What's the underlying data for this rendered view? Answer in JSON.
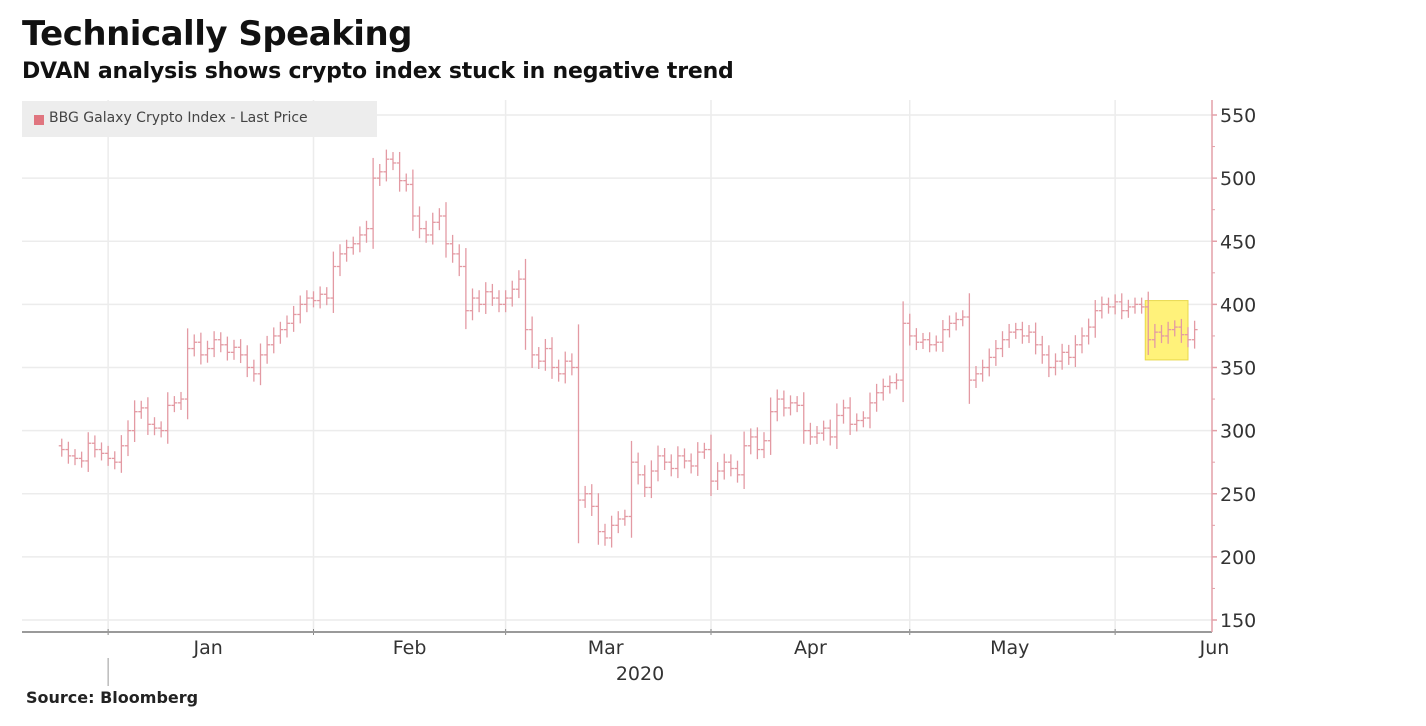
{
  "header": {
    "title": "Technically Speaking",
    "subtitle": "DVAN analysis shows crypto index stuck in negative trend"
  },
  "footer": {
    "source": "Source: Bloomberg"
  },
  "colors": {
    "series": "#e39aa3",
    "legend_swatch": "#e0757f",
    "highlight": "#fff27a",
    "highlight_border": "#e8d84a",
    "grid": "#ececec",
    "axis": "#e3a0a8"
  },
  "chart_data": {
    "type": "ohlc",
    "title": "Technically Speaking",
    "subtitle": "DVAN analysis shows crypto index stuck in negative trend",
    "xlabel": "2020",
    "ylabel": "",
    "ylim": [
      150,
      550
    ],
    "yticks": [
      150,
      200,
      250,
      300,
      350,
      400,
      450,
      500,
      550
    ],
    "y_axis_side": "right",
    "grid": true,
    "legend": {
      "position": "top-left",
      "entries": [
        "BBG Galaxy Crypto Index - Last Price"
      ]
    },
    "x_month_labels": [
      "Jan",
      "Feb",
      "Mar",
      "Apr",
      "May",
      "Jun"
    ],
    "year_label": "2020",
    "start_date": "2019-12-25",
    "x_range": [
      "2019-12-19",
      "2020-06-12"
    ],
    "highlight": {
      "from": "2020-06-06",
      "to": "2020-06-12",
      "low": 356,
      "high": 403,
      "note": "Yellow highlight box on latest prices"
    },
    "series": [
      {
        "name": "BBG Galaxy Crypto Index - Last Price",
        "close": [
          285,
          280,
          278,
          276,
          290,
          285,
          282,
          278,
          275,
          288,
          300,
          315,
          318,
          305,
          302,
          300,
          320,
          322,
          325,
          365,
          370,
          360,
          365,
          372,
          368,
          362,
          366,
          360,
          350,
          345,
          360,
          368,
          375,
          380,
          385,
          392,
          400,
          405,
          403,
          408,
          405,
          430,
          440,
          445,
          448,
          455,
          460,
          500,
          505,
          515,
          512,
          498,
          495,
          470,
          460,
          455,
          465,
          470,
          448,
          440,
          430,
          395,
          405,
          400,
          410,
          405,
          400,
          405,
          412,
          420,
          380,
          360,
          355,
          365,
          350,
          345,
          355,
          350,
          245,
          250,
          240,
          220,
          215,
          225,
          230,
          232,
          275,
          265,
          255,
          268,
          280,
          275,
          270,
          280,
          276,
          272,
          283,
          285,
          260,
          268,
          275,
          270,
          265,
          288,
          295,
          285,
          292,
          315,
          325,
          318,
          322,
          320,
          300,
          295,
          298,
          302,
          295,
          312,
          318,
          305,
          308,
          310,
          322,
          330,
          335,
          338,
          340,
          385,
          375,
          370,
          372,
          368,
          370,
          380,
          385,
          388,
          390,
          340,
          345,
          350,
          358,
          365,
          372,
          378,
          380,
          375,
          378,
          368,
          360,
          350,
          355,
          362,
          358,
          368,
          375,
          382,
          395,
          400,
          398,
          402,
          395,
          398,
          400,
          398,
          372,
          378,
          375,
          380,
          382,
          376,
          372,
          380
        ]
      }
    ]
  }
}
